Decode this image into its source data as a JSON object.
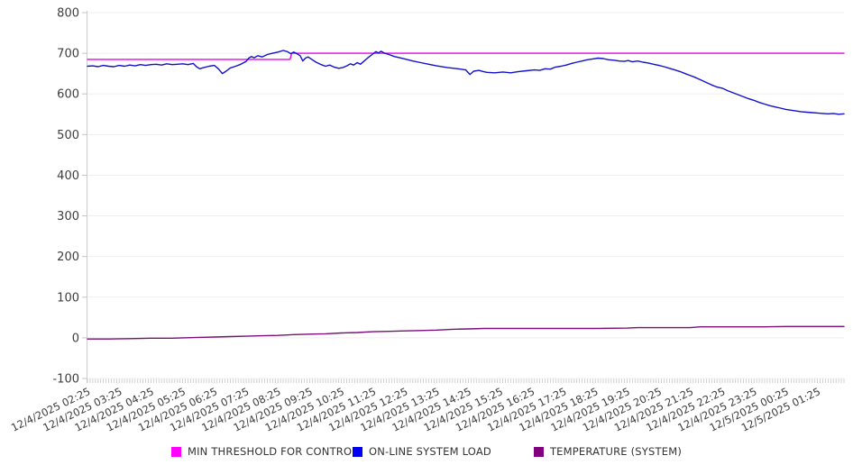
{
  "chart_data": {
    "type": "line",
    "title": "",
    "xlabel": "",
    "ylabel": "",
    "grid": true,
    "legend_position": "bottom",
    "x_unit": "minutes since 12/4/2025 02:25",
    "x_range_minutes": [
      0,
      1430
    ],
    "x_axis": {
      "labels": [
        "12/4/2025 02:25",
        "12/4/2025 03:25",
        "12/4/2025 04:25",
        "12/4/2025 05:25",
        "12/4/2025 06:25",
        "12/4/2025 07:25",
        "12/4/2025 08:25",
        "12/4/2025 09:25",
        "12/4/2025 10:25",
        "12/4/2025 11:25",
        "12/4/2025 12:25",
        "12/4/2025 13:25",
        "12/4/2025 14:25",
        "12/4/2025 15:25",
        "12/4/2025 16:25",
        "12/4/2025 17:25",
        "12/4/2025 18:25",
        "12/4/2025 19:25",
        "12/4/2025 20:25",
        "12/4/2025 21:25",
        "12/4/2025 22:25",
        "12/4/2025 23:25",
        "12/5/2025 00:25",
        "12/5/2025 01:25"
      ],
      "label_interval_minutes": 60,
      "minor_tick_minutes": 5,
      "label_rotation_deg": -26
    },
    "y_axis": {
      "min": -100,
      "max": 800,
      "tick_step": 100,
      "ticks": [
        800,
        700,
        600,
        500,
        400,
        300,
        200,
        100,
        0,
        -100
      ]
    },
    "series": [
      {
        "name": "MIN THRESHOLD FOR CONTROL",
        "color": "#ee00ee",
        "points": [
          [
            0,
            685
          ],
          [
            383,
            685
          ],
          [
            386,
            700
          ],
          [
            1430,
            700
          ]
        ]
      },
      {
        "name": "ON-LINE SYSTEM LOAD",
        "color": "#1111cc",
        "points": [
          [
            0,
            668
          ],
          [
            10,
            669
          ],
          [
            20,
            667
          ],
          [
            30,
            670
          ],
          [
            40,
            668
          ],
          [
            50,
            667
          ],
          [
            60,
            670
          ],
          [
            70,
            668
          ],
          [
            80,
            671
          ],
          [
            90,
            669
          ],
          [
            100,
            672
          ],
          [
            110,
            670
          ],
          [
            120,
            672
          ],
          [
            130,
            673
          ],
          [
            140,
            671
          ],
          [
            150,
            674
          ],
          [
            160,
            672
          ],
          [
            170,
            673
          ],
          [
            180,
            674
          ],
          [
            190,
            672
          ],
          [
            200,
            675
          ],
          [
            206,
            667
          ],
          [
            212,
            662
          ],
          [
            220,
            665
          ],
          [
            230,
            668
          ],
          [
            240,
            670
          ],
          [
            248,
            661
          ],
          [
            255,
            650
          ],
          [
            262,
            656
          ],
          [
            270,
            664
          ],
          [
            280,
            668
          ],
          [
            290,
            673
          ],
          [
            300,
            680
          ],
          [
            305,
            688
          ],
          [
            310,
            692
          ],
          [
            315,
            689
          ],
          [
            322,
            694
          ],
          [
            330,
            691
          ],
          [
            340,
            697
          ],
          [
            350,
            700
          ],
          [
            360,
            703
          ],
          [
            370,
            707
          ],
          [
            378,
            704
          ],
          [
            384,
            699
          ],
          [
            390,
            703
          ],
          [
            396,
            699
          ],
          [
            402,
            694
          ],
          [
            407,
            681
          ],
          [
            412,
            688
          ],
          [
            417,
            691
          ],
          [
            424,
            685
          ],
          [
            432,
            678
          ],
          [
            440,
            673
          ],
          [
            450,
            668
          ],
          [
            458,
            671
          ],
          [
            466,
            666
          ],
          [
            475,
            663
          ],
          [
            483,
            665
          ],
          [
            490,
            669
          ],
          [
            497,
            674
          ],
          [
            503,
            671
          ],
          [
            510,
            677
          ],
          [
            516,
            673
          ],
          [
            523,
            681
          ],
          [
            530,
            689
          ],
          [
            538,
            697
          ],
          [
            545,
            704
          ],
          [
            550,
            701
          ],
          [
            555,
            705
          ],
          [
            562,
            700
          ],
          [
            570,
            697
          ],
          [
            580,
            692
          ],
          [
            590,
            689
          ],
          [
            600,
            686
          ],
          [
            615,
            681
          ],
          [
            630,
            677
          ],
          [
            645,
            673
          ],
          [
            660,
            669
          ],
          [
            680,
            665
          ],
          [
            700,
            662
          ],
          [
            715,
            659
          ],
          [
            723,
            648
          ],
          [
            730,
            656
          ],
          [
            740,
            658
          ],
          [
            748,
            655
          ],
          [
            755,
            653
          ],
          [
            770,
            652
          ],
          [
            785,
            654
          ],
          [
            800,
            652
          ],
          [
            815,
            655
          ],
          [
            830,
            657
          ],
          [
            845,
            659
          ],
          [
            855,
            658
          ],
          [
            865,
            662
          ],
          [
            875,
            661
          ],
          [
            885,
            666
          ],
          [
            895,
            668
          ],
          [
            905,
            671
          ],
          [
            915,
            675
          ],
          [
            925,
            678
          ],
          [
            935,
            681
          ],
          [
            945,
            684
          ],
          [
            955,
            686
          ],
          [
            965,
            688
          ],
          [
            975,
            687
          ],
          [
            985,
            684
          ],
          [
            995,
            683
          ],
          [
            1005,
            681
          ],
          [
            1015,
            680
          ],
          [
            1022,
            682
          ],
          [
            1030,
            679
          ],
          [
            1040,
            681
          ],
          [
            1050,
            678
          ],
          [
            1060,
            676
          ],
          [
            1070,
            673
          ],
          [
            1080,
            670
          ],
          [
            1090,
            667
          ],
          [
            1100,
            663
          ],
          [
            1110,
            659
          ],
          [
            1120,
            655
          ],
          [
            1130,
            650
          ],
          [
            1140,
            645
          ],
          [
            1150,
            640
          ],
          [
            1160,
            634
          ],
          [
            1170,
            628
          ],
          [
            1180,
            622
          ],
          [
            1190,
            617
          ],
          [
            1200,
            614
          ],
          [
            1210,
            608
          ],
          [
            1220,
            603
          ],
          [
            1230,
            598
          ],
          [
            1240,
            593
          ],
          [
            1250,
            588
          ],
          [
            1260,
            584
          ],
          [
            1270,
            579
          ],
          [
            1280,
            575
          ],
          [
            1290,
            571
          ],
          [
            1300,
            568
          ],
          [
            1310,
            565
          ],
          [
            1320,
            562
          ],
          [
            1330,
            560
          ],
          [
            1340,
            558
          ],
          [
            1350,
            556
          ],
          [
            1360,
            555
          ],
          [
            1370,
            554
          ],
          [
            1380,
            553
          ],
          [
            1390,
            552
          ],
          [
            1400,
            551
          ],
          [
            1410,
            552
          ],
          [
            1420,
            550
          ],
          [
            1430,
            551
          ]
        ]
      },
      {
        "name": "TEMPERATURE (SYSTEM)",
        "color": "#7b0f7b",
        "points": [
          [
            0,
            -3
          ],
          [
            40,
            -3
          ],
          [
            80,
            -2
          ],
          [
            120,
            -1
          ],
          [
            160,
            -1
          ],
          [
            180,
            0
          ],
          [
            210,
            1
          ],
          [
            240,
            2
          ],
          [
            270,
            3
          ],
          [
            300,
            4
          ],
          [
            330,
            5
          ],
          [
            360,
            6
          ],
          [
            390,
            8
          ],
          [
            420,
            9
          ],
          [
            450,
            10
          ],
          [
            480,
            12
          ],
          [
            510,
            13
          ],
          [
            540,
            15
          ],
          [
            570,
            16
          ],
          [
            600,
            17
          ],
          [
            630,
            18
          ],
          [
            660,
            19
          ],
          [
            690,
            21
          ],
          [
            720,
            22
          ],
          [
            750,
            23
          ],
          [
            780,
            23
          ],
          [
            840,
            23
          ],
          [
            900,
            23
          ],
          [
            960,
            23
          ],
          [
            1020,
            24
          ],
          [
            1040,
            25
          ],
          [
            1100,
            25
          ],
          [
            1140,
            25
          ],
          [
            1158,
            27
          ],
          [
            1220,
            27
          ],
          [
            1280,
            27
          ],
          [
            1320,
            28
          ],
          [
            1380,
            28
          ],
          [
            1430,
            28
          ]
        ]
      }
    ]
  },
  "legend": {
    "items": [
      {
        "label": "MIN THRESHOLD FOR CONTROL",
        "color": "#ff00ff"
      },
      {
        "label": "ON-LINE SYSTEM LOAD",
        "color": "#0000ee"
      },
      {
        "label": "TEMPERATURE (SYSTEM)",
        "color": "#800080"
      }
    ]
  },
  "style": {
    "grid_color": "#efefef",
    "axis_line_color": "#cccccc",
    "tick_color": "#c4c4c4",
    "text_color": "#3d3d3d"
  }
}
